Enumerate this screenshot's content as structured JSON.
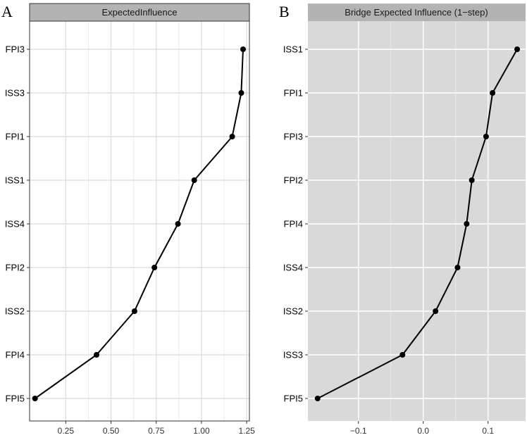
{
  "chart_data": [
    {
      "type": "line",
      "panel_label": "A",
      "title": "ExpectedInfluence",
      "xlabel": "",
      "ylabel": "",
      "categories": [
        "FPI3",
        "ISS3",
        "FPI1",
        "ISS1",
        "ISS4",
        "FPI2",
        "ISS2",
        "FPI4",
        "FPI5"
      ],
      "values": [
        1.23,
        1.22,
        1.17,
        0.96,
        0.87,
        0.74,
        0.63,
        0.42,
        0.08
      ],
      "xlim": [
        0.05,
        1.265
      ],
      "xticks": [
        0.25,
        0.5,
        0.75,
        1.0,
        1.25
      ],
      "xtick_labels": [
        "0.25",
        "0.50",
        "0.75",
        "1.00",
        "1.25"
      ],
      "grid": true,
      "theme": "white background, light grey gridlines, black border"
    },
    {
      "type": "line",
      "panel_label": "B",
      "title": "Bridge Expected Influence (1−step)",
      "xlabel": "",
      "ylabel": "",
      "categories": [
        "ISS1",
        "FPI1",
        "FPI3",
        "FPI2",
        "FPI4",
        "ISS4",
        "ISS2",
        "ISS3",
        "FPI5"
      ],
      "values": [
        0.145,
        0.107,
        0.097,
        0.075,
        0.067,
        0.053,
        0.019,
        -0.032,
        -0.163
      ],
      "xlim": [
        -0.178,
        0.158
      ],
      "xticks": [
        -0.1,
        0.0,
        0.1
      ],
      "xtick_labels": [
        "−0.1",
        "0.0",
        "0.1"
      ],
      "grid": true,
      "theme": "grey background, white gridlines"
    }
  ],
  "colors": {
    "strip_fill": "#b3b3b3",
    "panel_b_background": "#d9d9d9",
    "line": "#000000",
    "grid_light": "#e0e0e0",
    "grid_white": "#ffffff"
  }
}
